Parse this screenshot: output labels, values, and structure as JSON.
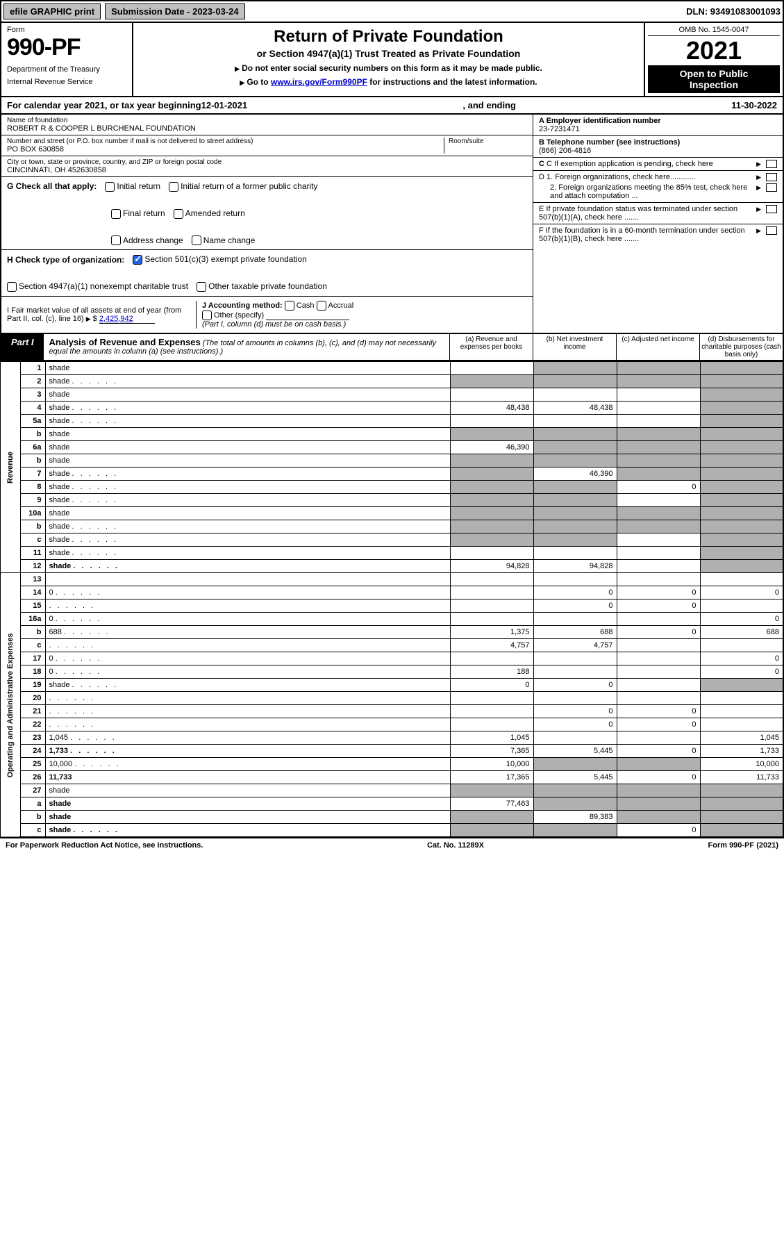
{
  "topbar": {
    "efile": "efile GRAPHIC print",
    "submission": "Submission Date - 2023-03-24",
    "dln": "DLN: 93491083001093"
  },
  "header": {
    "form_word": "Form",
    "form_num": "990-PF",
    "dept1": "Department of the Treasury",
    "dept2": "Internal Revenue Service",
    "title": "Return of Private Foundation",
    "subtitle": "or Section 4947(a)(1) Trust Treated as Private Foundation",
    "instr1": "Do not enter social security numbers on this form as it may be made public.",
    "instr2_pre": "Go to ",
    "instr2_link": "www.irs.gov/Form990PF",
    "instr2_post": " for instructions and the latest information.",
    "omb": "OMB No. 1545-0047",
    "year": "2021",
    "open1": "Open to Public",
    "open2": "Inspection"
  },
  "cal_year": {
    "prefix": "For calendar year 2021, or tax year beginning ",
    "begin": "12-01-2021",
    "mid": " , and ending ",
    "end": "11-30-2022"
  },
  "info": {
    "name_label": "Name of foundation",
    "name": "ROBERT R & COOPER L BURCHENAL FOUNDATION",
    "addr_label": "Number and street (or P.O. box number if mail is not delivered to street address)",
    "room_label": "Room/suite",
    "addr": "PO BOX 630858",
    "city_label": "City or town, state or province, country, and ZIP or foreign postal code",
    "city": "CINCINNATI, OH  452630858",
    "a_label": "A Employer identification number",
    "a_val": "23-7231471",
    "b_label": "B Telephone number (see instructions)",
    "b_val": "(866) 206-4816",
    "c_label": "C If exemption application is pending, check here",
    "d1_label": "D 1. Foreign organizations, check here............",
    "d2_label": "2. Foreign organizations meeting the 85% test, check here and attach computation ...",
    "e_label": "E  If private foundation status was terminated under section 507(b)(1)(A), check here .......",
    "f_label": "F  If the foundation is in a 60-month termination under section 507(b)(1)(B), check here ......."
  },
  "checks": {
    "g_label": "G Check all that apply:",
    "initial": "Initial return",
    "initial_former": "Initial return of a former public charity",
    "final": "Final return",
    "amended": "Amended return",
    "addr_change": "Address change",
    "name_change": "Name change",
    "h_label": "H Check type of organization:",
    "h_501c3": "Section 501(c)(3) exempt private foundation",
    "h_4947": "Section 4947(a)(1) nonexempt charitable trust",
    "h_other": "Other taxable private foundation",
    "i_label": "I Fair market value of all assets at end of year (from Part II, col. (c), line 16)",
    "i_val": "2,425,942",
    "j_label": "J Accounting method:",
    "j_cash": "Cash",
    "j_accrual": "Accrual",
    "j_other": "Other (specify)",
    "j_note": "(Part I, column (d) must be on cash basis.)"
  },
  "part1": {
    "tab": "Part I",
    "title": "Analysis of Revenue and Expenses",
    "note": " (The total of amounts in columns (b), (c), and (d) may not necessarily equal the amounts in column (a) (see instructions).)",
    "col_a": "(a) Revenue and expenses per books",
    "col_b": "(b) Net investment income",
    "col_c": "(c) Adjusted net income",
    "col_d": "(d) Disbursements for charitable purposes (cash basis only)"
  },
  "sides": {
    "revenue": "Revenue",
    "expenses": "Operating and Administrative Expenses"
  },
  "rows": [
    {
      "n": "1",
      "d": "shade",
      "a": "",
      "b": "shade",
      "c": "shade"
    },
    {
      "n": "2",
      "d": "shade",
      "dots": true,
      "a": "shade",
      "b": "shade",
      "c": "shade"
    },
    {
      "n": "3",
      "d": "shade",
      "a": "",
      "b": "",
      "c": ""
    },
    {
      "n": "4",
      "d": "shade",
      "dots": true,
      "a": "48,438",
      "b": "48,438",
      "c": ""
    },
    {
      "n": "5a",
      "d": "shade",
      "dots": true,
      "a": "",
      "b": "",
      "c": ""
    },
    {
      "n": "b",
      "d": "shade",
      "a": "shade",
      "b": "shade",
      "c": "shade"
    },
    {
      "n": "6a",
      "d": "shade",
      "a": "46,390",
      "b": "shade",
      "c": "shade"
    },
    {
      "n": "b",
      "d": "shade",
      "a": "shade",
      "b": "shade",
      "c": "shade"
    },
    {
      "n": "7",
      "d": "shade",
      "dots": true,
      "a": "shade",
      "b": "46,390",
      "c": "shade"
    },
    {
      "n": "8",
      "d": "shade",
      "dots": true,
      "a": "shade",
      "b": "shade",
      "c": "0"
    },
    {
      "n": "9",
      "d": "shade",
      "dots": true,
      "a": "shade",
      "b": "shade",
      "c": ""
    },
    {
      "n": "10a",
      "d": "shade",
      "a": "shade",
      "b": "shade",
      "c": "shade"
    },
    {
      "n": "b",
      "d": "shade",
      "dots": true,
      "a": "shade",
      "b": "shade",
      "c": "shade"
    },
    {
      "n": "c",
      "d": "shade",
      "dots": true,
      "a": "shade",
      "b": "shade",
      "c": ""
    },
    {
      "n": "11",
      "d": "shade",
      "dots": true,
      "a": "",
      "b": "",
      "c": ""
    },
    {
      "n": "12",
      "d": "shade",
      "dots": true,
      "bold": true,
      "a": "94,828",
      "b": "94,828",
      "c": ""
    },
    {
      "n": "13",
      "d": "",
      "a": "",
      "b": "",
      "c": ""
    },
    {
      "n": "14",
      "d": "0",
      "dots": true,
      "a": "",
      "b": "0",
      "c": "0"
    },
    {
      "n": "15",
      "d": "",
      "dots": true,
      "a": "",
      "b": "0",
      "c": "0"
    },
    {
      "n": "16a",
      "d": "0",
      "dots": true,
      "a": "",
      "b": "",
      "c": ""
    },
    {
      "n": "b",
      "d": "688",
      "dots": true,
      "a": "1,375",
      "b": "688",
      "c": "0"
    },
    {
      "n": "c",
      "d": "",
      "dots": true,
      "a": "4,757",
      "b": "4,757",
      "c": ""
    },
    {
      "n": "17",
      "d": "0",
      "dots": true,
      "a": "",
      "b": "",
      "c": ""
    },
    {
      "n": "18",
      "d": "0",
      "dots": true,
      "a": "188",
      "b": "",
      "c": ""
    },
    {
      "n": "19",
      "d": "shade",
      "dots": true,
      "a": "0",
      "b": "0",
      "c": ""
    },
    {
      "n": "20",
      "d": "",
      "dots": true,
      "a": "",
      "b": "",
      "c": ""
    },
    {
      "n": "21",
      "d": "",
      "dots": true,
      "a": "",
      "b": "0",
      "c": "0"
    },
    {
      "n": "22",
      "d": "",
      "dots": true,
      "a": "",
      "b": "0",
      "c": "0"
    },
    {
      "n": "23",
      "d": "1,045",
      "dots": true,
      "a": "1,045",
      "b": "",
      "c": ""
    },
    {
      "n": "24",
      "d": "1,733",
      "dots": true,
      "bold": true,
      "a": "7,365",
      "b": "5,445",
      "c": "0"
    },
    {
      "n": "25",
      "d": "10,000",
      "dots": true,
      "a": "10,000",
      "b": "shade",
      "c": "shade"
    },
    {
      "n": "26",
      "d": "11,733",
      "bold": true,
      "a": "17,365",
      "b": "5,445",
      "c": "0"
    },
    {
      "n": "27",
      "d": "shade",
      "a": "shade",
      "b": "shade",
      "c": "shade"
    },
    {
      "n": "a",
      "d": "shade",
      "bold": true,
      "a": "77,463",
      "b": "shade",
      "c": "shade"
    },
    {
      "n": "b",
      "d": "shade",
      "bold": true,
      "a": "shade",
      "b": "89,383",
      "c": "shade"
    },
    {
      "n": "c",
      "d": "shade",
      "dots": true,
      "bold": true,
      "a": "shade",
      "b": "shade",
      "c": "0"
    }
  ],
  "footer": {
    "left": "For Paperwork Reduction Act Notice, see instructions.",
    "mid": "Cat. No. 11289X",
    "right": "Form 990-PF (2021)"
  }
}
